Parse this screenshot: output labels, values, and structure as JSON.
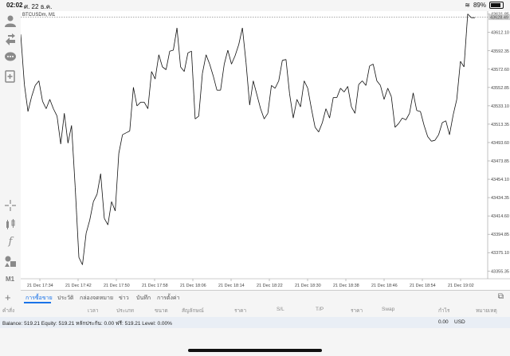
{
  "status_bar": {
    "time": "02:02",
    "date": "ศ. 22 ธ.ค.",
    "battery": "89%"
  },
  "chart": {
    "symbol_label": "BTCUSDm, M1",
    "current_price": "43628.49"
  },
  "chart_data": {
    "type": "line",
    "price_ticks": [
      "43631.85",
      "43612.10",
      "43592.35",
      "43572.60",
      "43552.85",
      "43533.10",
      "43513.35",
      "43493.60",
      "43473.85",
      "43454.10",
      "43434.35",
      "43414.60",
      "43394.85",
      "43375.10",
      "43355.35"
    ],
    "time_ticks": [
      "21 Dec 17:34",
      "21 Dec 17:42",
      "21 Dec 17:50",
      "21 Dec 17:58",
      "21 Dec 18:06",
      "21 Dec 18:14",
      "21 Dec 18:22",
      "21 Dec 18:30",
      "21 Dec 18:38",
      "21 Dec 18:46",
      "21 Dec 18:54",
      "21 Dec 19:02"
    ],
    "ylim": [
      43347,
      43635
    ],
    "values": [
      43610,
      43556,
      43527,
      43543,
      43555,
      43560,
      43538,
      43530,
      43540,
      43530,
      43522,
      43492,
      43525,
      43493,
      43512,
      43445,
      43370,
      43362,
      43396,
      43410,
      43430,
      43438,
      43460,
      43412,
      43405,
      43430,
      43420,
      43482,
      43502,
      43504,
      43506,
      43553,
      43533,
      43537,
      43537,
      43530,
      43570,
      43562,
      43588,
      43575,
      43572,
      43592,
      43593,
      43617,
      43575,
      43570,
      43590,
      43592,
      43519,
      43522,
      43568,
      43588,
      43578,
      43565,
      43550,
      43550,
      43578,
      43593,
      43578,
      43587,
      43599,
      43617,
      43580,
      43534,
      43560,
      43545,
      43530,
      43519,
      43525,
      43555,
      43552,
      43560,
      43582,
      43583,
      43546,
      43520,
      43540,
      43532,
      43560,
      43552,
      43530,
      43510,
      43505,
      43515,
      43530,
      43520,
      43542,
      43542,
      43552,
      43548,
      43554,
      43532,
      43525,
      43556,
      43560,
      43555,
      43576,
      43578,
      43560,
      43555,
      43540,
      43552,
      43543,
      43510,
      43514,
      43520,
      43518,
      43525,
      43547,
      43528,
      43527,
      43512,
      43500,
      43495,
      43496,
      43502,
      43515,
      43517,
      43502,
      43523,
      43540,
      43581,
      43575,
      43632,
      43628,
      43628
    ]
  },
  "tabs": [
    {
      "label": "การซื้อขาย",
      "active": true
    },
    {
      "label": "ประวัติ",
      "active": false
    },
    {
      "label": "กล่องจดหมาย",
      "active": false
    },
    {
      "label": "ข่าว",
      "active": false
    },
    {
      "label": "บันทึก",
      "active": false
    },
    {
      "label": "การตั้งค่า",
      "active": false
    }
  ],
  "headers": [
    "คำสั่ง",
    "เวลา",
    "ประเภท",
    "ขนาด",
    "สัญลักษณ์",
    "ราคา",
    "S/L",
    "T/P",
    "ราคา",
    "Swap",
    "กำไร",
    "หมายเหตุ"
  ],
  "balance": {
    "text": "Balance: 519.21 Equity: 519.21 หลักประกัน: 0.00 ฟรี: 519.21 Level: 0.00%",
    "profit": "0.00",
    "currency": "USD"
  },
  "sidebar": {
    "timeframe": "M1"
  }
}
